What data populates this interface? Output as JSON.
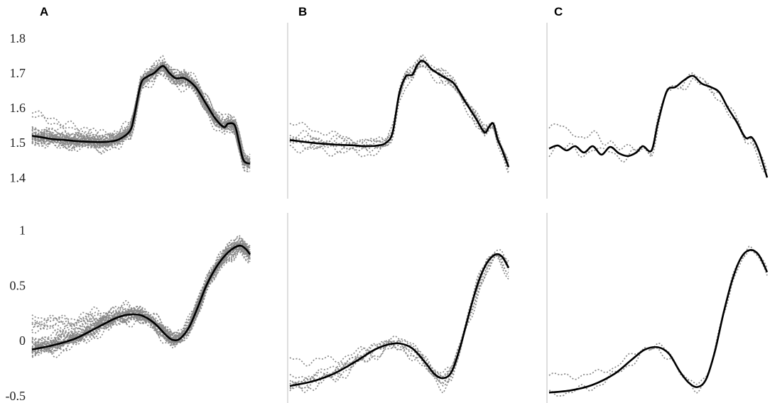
{
  "chart_data": {
    "type": "line",
    "panel_labels": [
      "A",
      "B",
      "C"
    ],
    "rows": [
      {
        "ylim": [
          1.36,
          1.82
        ],
        "yticks": [
          1.4,
          1.5,
          1.6,
          1.7,
          1.8
        ],
        "ytick_labels": [
          "1.4",
          "1.5",
          "1.6",
          "1.7",
          "1.8"
        ]
      },
      {
        "ylim": [
          -0.5,
          1.08
        ],
        "yticks": [
          -0.5,
          0,
          0.5,
          1
        ],
        "ytick_labels": [
          "-0.5",
          "0",
          "0.5",
          "1"
        ]
      }
    ],
    "panels": [
      {
        "id": "A-top",
        "panel": "A",
        "row": 0,
        "n_dotted": 38,
        "mean": {
          "x": [
            0,
            0.05,
            0.1,
            0.15,
            0.2,
            0.25,
            0.3,
            0.35,
            0.4,
            0.45,
            0.47,
            0.5,
            0.53,
            0.56,
            0.6,
            0.63,
            0.66,
            0.7,
            0.75,
            0.8,
            0.84,
            0.88,
            0.9,
            0.93,
            0.95,
            0.97,
            1.0
          ],
          "y": [
            1.52,
            1.515,
            1.51,
            1.508,
            1.505,
            1.503,
            1.502,
            1.503,
            1.51,
            1.535,
            1.58,
            1.67,
            1.69,
            1.7,
            1.72,
            1.7,
            1.685,
            1.685,
            1.66,
            1.61,
            1.57,
            1.545,
            1.555,
            1.55,
            1.5,
            1.45,
            1.44
          ]
        }
      },
      {
        "id": "B-top",
        "panel": "B",
        "row": 0,
        "n_dotted": 8,
        "mean": {
          "x": [
            0,
            0.1,
            0.2,
            0.3,
            0.35,
            0.4,
            0.44,
            0.47,
            0.5,
            0.53,
            0.56,
            0.58,
            0.6,
            0.62,
            0.65,
            0.7,
            0.75,
            0.8,
            0.85,
            0.89,
            0.91,
            0.93,
            0.95,
            0.97,
            1.0
          ],
          "y": [
            1.508,
            1.5,
            1.495,
            1.492,
            1.49,
            1.492,
            1.5,
            1.53,
            1.64,
            1.69,
            1.695,
            1.72,
            1.735,
            1.73,
            1.71,
            1.69,
            1.67,
            1.62,
            1.57,
            1.53,
            1.545,
            1.555,
            1.51,
            1.48,
            1.43
          ]
        }
      },
      {
        "id": "C-top",
        "panel": "C",
        "row": 0,
        "n_dotted": 2,
        "mean": {
          "x": [
            0,
            0.04,
            0.08,
            0.12,
            0.16,
            0.2,
            0.24,
            0.28,
            0.32,
            0.36,
            0.4,
            0.43,
            0.47,
            0.5,
            0.54,
            0.58,
            0.62,
            0.66,
            0.7,
            0.74,
            0.78,
            0.82,
            0.86,
            0.9,
            0.93,
            0.96,
            1.0
          ],
          "y": [
            1.483,
            1.492,
            1.478,
            1.49,
            1.472,
            1.49,
            1.466,
            1.488,
            1.47,
            1.462,
            1.472,
            1.49,
            1.478,
            1.56,
            1.648,
            1.66,
            1.68,
            1.692,
            1.67,
            1.66,
            1.645,
            1.6,
            1.56,
            1.515,
            1.515,
            1.48,
            1.4
          ]
        }
      },
      {
        "id": "A-bottom",
        "panel": "A",
        "row": 1,
        "n_dotted": 38,
        "mean": {
          "x": [
            0,
            0.1,
            0.2,
            0.3,
            0.38,
            0.44,
            0.5,
            0.56,
            0.62,
            0.65,
            0.68,
            0.72,
            0.76,
            0.8,
            0.85,
            0.9,
            0.95,
            0.98,
            1.0
          ],
          "y": [
            -0.08,
            -0.04,
            0.02,
            0.12,
            0.2,
            0.235,
            0.23,
            0.16,
            0.04,
            0.005,
            0.02,
            0.12,
            0.3,
            0.5,
            0.68,
            0.8,
            0.86,
            0.83,
            0.78
          ]
        }
      },
      {
        "id": "B-bottom",
        "panel": "B",
        "row": 1,
        "n_dotted": 8,
        "mean": {
          "x": [
            0,
            0.1,
            0.2,
            0.3,
            0.38,
            0.44,
            0.5,
            0.56,
            0.62,
            0.66,
            0.7,
            0.74,
            0.78,
            0.82,
            0.86,
            0.9,
            0.94,
            0.97,
            1.0
          ],
          "y": [
            -0.41,
            -0.37,
            -0.3,
            -0.19,
            -0.09,
            -0.04,
            -0.025,
            -0.07,
            -0.2,
            -0.3,
            -0.34,
            -0.28,
            -0.05,
            0.25,
            0.52,
            0.7,
            0.78,
            0.76,
            0.66
          ]
        }
      },
      {
        "id": "C-bottom",
        "panel": "C",
        "row": 1,
        "n_dotted": 2,
        "mean": {
          "x": [
            0,
            0.1,
            0.2,
            0.3,
            0.38,
            0.44,
            0.5,
            0.55,
            0.6,
            0.64,
            0.68,
            0.72,
            0.76,
            0.8,
            0.84,
            0.88,
            0.92,
            0.96,
            1.0
          ],
          "y": [
            -0.47,
            -0.45,
            -0.4,
            -0.3,
            -0.17,
            -0.08,
            -0.06,
            -0.12,
            -0.28,
            -0.38,
            -0.42,
            -0.35,
            -0.1,
            0.25,
            0.55,
            0.75,
            0.82,
            0.78,
            0.62
          ]
        }
      }
    ],
    "colors": {
      "mean": "#000000",
      "dotted": "#8a8a8a",
      "axis": "#c8c8c8"
    }
  }
}
